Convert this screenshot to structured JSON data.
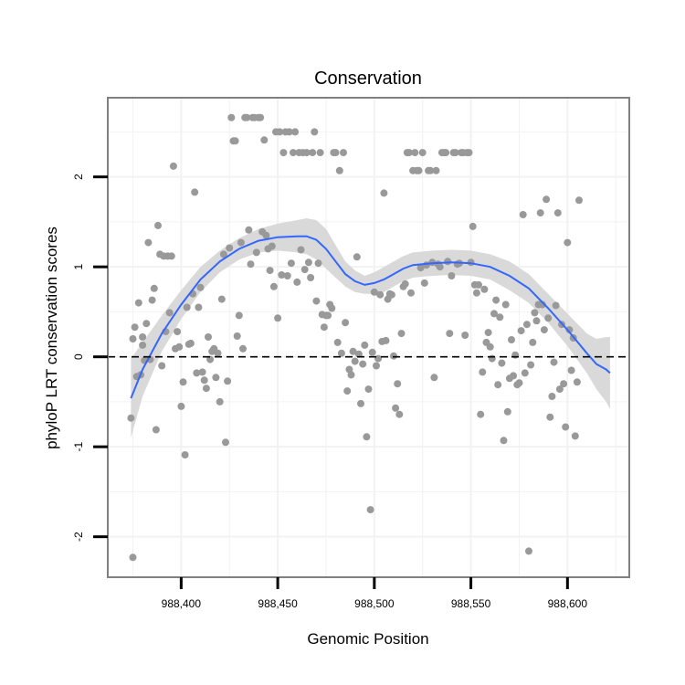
{
  "chart_data": {
    "type": "scatter",
    "title": "Conservation",
    "xlabel": "Genomic Position",
    "ylabel": "phyloP LRT conservation scores",
    "xlim": [
      988362,
      988632
    ],
    "ylim": [
      -2.45,
      2.88
    ],
    "x_ticks": [
      988400,
      988450,
      988500,
      988550,
      988600
    ],
    "x_tick_labels": [
      "988,400",
      "988,450",
      "988,500",
      "988,550",
      "988,600"
    ],
    "y_ticks": [
      -2,
      -1,
      0,
      1,
      2
    ],
    "y_tick_labels": [
      "-2",
      "-1",
      "0",
      "1",
      "2"
    ],
    "grid": true,
    "reference_line": {
      "y": 0,
      "style": "dashed",
      "color": "#000000"
    },
    "colors": {
      "points": "#999999",
      "smooth_line": "#3366ff",
      "ribbon": "#d9d9d9",
      "panel_border": "#808080",
      "grid": "#f2f2f2"
    },
    "series": [
      {
        "kind": "points",
        "points": [
          [
            988374,
            -0.68
          ],
          [
            988375,
            -2.23
          ],
          [
            988375,
            0.2
          ],
          [
            988376,
            0.33
          ],
          [
            988377,
            -0.22
          ],
          [
            988378,
            0.6
          ],
          [
            988379,
            -0.2
          ],
          [
            988380,
            0.13
          ],
          [
            988380,
            0.22
          ],
          [
            988381,
            -0.04
          ],
          [
            988382,
            0.37
          ],
          [
            988383,
            1.27
          ],
          [
            988384,
            -0.03
          ],
          [
            988385,
            0.63
          ],
          [
            988386,
            0.76
          ],
          [
            988387,
            -0.81
          ],
          [
            988388,
            1.46
          ],
          [
            988389,
            1.14
          ],
          [
            988390,
            -0.1
          ],
          [
            988391,
            1.12
          ],
          [
            988392,
            0.28
          ],
          [
            988393,
            1.12
          ],
          [
            988394,
            0.49
          ],
          [
            988395,
            1.12
          ],
          [
            988396,
            2.12
          ],
          [
            988397,
            0.09
          ],
          [
            988398,
            0.28
          ],
          [
            988399,
            0.11
          ],
          [
            988400,
            -0.55
          ],
          [
            988401,
            -0.28
          ],
          [
            988402,
            -1.09
          ],
          [
            988403,
            0.55
          ],
          [
            988404,
            0.14
          ],
          [
            988405,
            0.15
          ],
          [
            988406,
            0.7
          ],
          [
            988407,
            1.83
          ],
          [
            988408,
            -0.18
          ],
          [
            988409,
            0.55
          ],
          [
            988410,
            0.77
          ],
          [
            988411,
            -0.17
          ],
          [
            988412,
            -0.26
          ],
          [
            988413,
            -0.35
          ],
          [
            988414,
            0.22
          ],
          [
            988415,
            -0.03
          ],
          [
            988416,
            0.06
          ],
          [
            988417,
            0.09
          ],
          [
            988418,
            -0.23
          ],
          [
            988419,
            0.04
          ],
          [
            988420,
            -0.5
          ],
          [
            988421,
            0.64
          ],
          [
            988422,
            1.14
          ],
          [
            988423,
            -0.95
          ],
          [
            988424,
            -0.27
          ],
          [
            988425,
            1.21
          ],
          [
            988426,
            2.66
          ],
          [
            988427,
            2.4
          ],
          [
            988428,
            2.4
          ],
          [
            988429,
            0.23
          ],
          [
            988430,
            0.46
          ],
          [
            988431,
            1.27
          ],
          [
            988432,
            0.09
          ],
          [
            988433,
            2.66
          ],
          [
            988434,
            2.66
          ],
          [
            988435,
            1.41
          ],
          [
            988436,
            1.03
          ],
          [
            988437,
            2.66
          ],
          [
            988438,
            2.66
          ],
          [
            988439,
            1.16
          ],
          [
            988440,
            2.66
          ],
          [
            988441,
            2.66
          ],
          [
            988442,
            1.39
          ],
          [
            988443,
            2.41
          ],
          [
            988444,
            1.35
          ],
          [
            988445,
            1.2
          ],
          [
            988446,
            0.96
          ],
          [
            988447,
            1.23
          ],
          [
            988448,
            0.78
          ],
          [
            988449,
            2.5
          ],
          [
            988450,
            0.43
          ],
          [
            988451,
            2.5
          ],
          [
            988452,
            0.91
          ],
          [
            988453,
            2.27
          ],
          [
            988454,
            2.5
          ],
          [
            988455,
            0.9
          ],
          [
            988456,
            2.5
          ],
          [
            988457,
            1.04
          ],
          [
            988458,
            2.27
          ],
          [
            988459,
            2.5
          ],
          [
            988460,
            0.83
          ],
          [
            988461,
            2.27
          ],
          [
            988462,
            1.19
          ],
          [
            988463,
            2.27
          ],
          [
            988464,
            0.97
          ],
          [
            988465,
            2.27
          ],
          [
            988466,
            1.05
          ],
          [
            988467,
            0.88
          ],
          [
            988468,
            2.27
          ],
          [
            988469,
            2.5
          ],
          [
            988470,
            0.62
          ],
          [
            988471,
            1.04
          ],
          [
            988472,
            2.27
          ],
          [
            988473,
            0.47
          ],
          [
            988474,
            0.33
          ],
          [
            988475,
            0.46
          ],
          [
            988476,
            0.46
          ],
          [
            988477,
            0.58
          ],
          [
            988478,
            0.54
          ],
          [
            988479,
            2.27
          ],
          [
            988480,
            2.27
          ],
          [
            988481,
            0.16
          ],
          [
            988482,
            2.07
          ],
          [
            988483,
            0.04
          ],
          [
            988484,
            2.27
          ],
          [
            988485,
            0.38
          ],
          [
            988486,
            -0.38
          ],
          [
            988487,
            -0.14
          ],
          [
            988488,
            -0.2
          ],
          [
            988489,
            0.06
          ],
          [
            988490,
            -0.05
          ],
          [
            988491,
            1.11
          ],
          [
            988492,
            0.03
          ],
          [
            988493,
            -0.52
          ],
          [
            988494,
            -0.08
          ],
          [
            988495,
            0.13
          ],
          [
            988496,
            -0.89
          ],
          [
            988497,
            -0.36
          ],
          [
            988498,
            -1.7
          ],
          [
            988499,
            0.05
          ],
          [
            988500,
            0.72
          ],
          [
            988501,
            -0.1
          ],
          [
            988502,
            -0.02
          ],
          [
            988503,
            0.69
          ],
          [
            988504,
            0.17
          ],
          [
            988505,
            1.82
          ],
          [
            988506,
            0.18
          ],
          [
            988507,
            0.64
          ],
          [
            988508,
            0.7
          ],
          [
            988509,
            0.69
          ],
          [
            988510,
            0.01
          ],
          [
            988511,
            -0.57
          ],
          [
            988512,
            -0.3
          ],
          [
            988513,
            -0.64
          ],
          [
            988514,
            0.26
          ],
          [
            988515,
            0.78
          ],
          [
            988516,
            0.81
          ],
          [
            988517,
            2.27
          ],
          [
            988518,
            2.27
          ],
          [
            988519,
            0.71
          ],
          [
            988520,
            2.07
          ],
          [
            988521,
            2.27
          ],
          [
            988522,
            2.07
          ],
          [
            988523,
            2.07
          ],
          [
            988524,
            0.99
          ],
          [
            988525,
            2.27
          ],
          [
            988526,
            0.82
          ],
          [
            988527,
            1.02
          ],
          [
            988528,
            2.07
          ],
          [
            988529,
            2.07
          ],
          [
            988530,
            1.05
          ],
          [
            988531,
            -0.23
          ],
          [
            988532,
            2.07
          ],
          [
            988533,
            1.03
          ],
          [
            988534,
            1.0
          ],
          [
            988535,
            2.27
          ],
          [
            988536,
            2.27
          ],
          [
            988537,
            2.27
          ],
          [
            988538,
            1.06
          ],
          [
            988539,
            0.26
          ],
          [
            988540,
            0.9
          ],
          [
            988541,
            2.27
          ],
          [
            988542,
            2.27
          ],
          [
            988543,
            1.03
          ],
          [
            988544,
            1.04
          ],
          [
            988545,
            2.27
          ],
          [
            988546,
            2.27
          ],
          [
            988547,
            0.24
          ],
          [
            988548,
            2.27
          ],
          [
            988549,
            2.27
          ],
          [
            988550,
            1.05
          ],
          [
            988551,
            1.45
          ],
          [
            988552,
            0.8
          ],
          [
            988553,
            0.71
          ],
          [
            988554,
            0.8
          ],
          [
            988555,
            -0.64
          ],
          [
            988556,
            -0.17
          ],
          [
            988557,
            0.75
          ],
          [
            988558,
            0.16
          ],
          [
            988559,
            0.27
          ],
          [
            988560,
            0.11
          ],
          [
            988561,
            -0.02
          ],
          [
            988562,
            0.48
          ],
          [
            988563,
            0.63
          ],
          [
            988564,
            -0.31
          ],
          [
            988565,
            0.44
          ],
          [
            988566,
            -0.07
          ],
          [
            988567,
            -0.93
          ],
          [
            988568,
            0.58
          ],
          [
            988569,
            -0.61
          ],
          [
            988570,
            -0.24
          ],
          [
            988571,
            0.19
          ],
          [
            988572,
            -0.21
          ],
          [
            988573,
            0.02
          ],
          [
            988574,
            -0.31
          ],
          [
            988575,
            -0.29
          ],
          [
            988576,
            0.29
          ],
          [
            988577,
            1.58
          ],
          [
            988578,
            -0.18
          ],
          [
            988579,
            0.36
          ],
          [
            988580,
            -2.16
          ],
          [
            988581,
            -0.09
          ],
          [
            988582,
            0.16
          ],
          [
            988583,
            0.49
          ],
          [
            988584,
            0.4
          ],
          [
            988585,
            0.58
          ],
          [
            988586,
            1.6
          ],
          [
            988587,
            0.58
          ],
          [
            988588,
            0.3
          ],
          [
            988589,
            1.75
          ],
          [
            988590,
            0.43
          ],
          [
            988591,
            -0.67
          ],
          [
            988592,
            -0.44
          ],
          [
            988593,
            -0.06
          ],
          [
            988594,
            0.57
          ],
          [
            988595,
            1.6
          ],
          [
            988596,
            -0.36
          ],
          [
            988597,
            0.36
          ],
          [
            988598,
            -0.3
          ],
          [
            988599,
            -0.78
          ],
          [
            988600,
            1.27
          ],
          [
            988601,
            0.3
          ],
          [
            988602,
            -0.15
          ],
          [
            988603,
            0.21
          ],
          [
            988604,
            -0.88
          ],
          [
            988605,
            -0.28
          ],
          [
            988606,
            1.74
          ]
        ]
      },
      {
        "kind": "smooth",
        "x": [
          988374,
          988380,
          988390,
          988400,
          988410,
          988420,
          988430,
          988440,
          988450,
          988460,
          988465,
          988470,
          988475,
          988480,
          988485,
          988490,
          988495,
          988500,
          988505,
          988510,
          988515,
          988520,
          988530,
          988540,
          988550,
          988560,
          988570,
          988580,
          988590,
          988600,
          988610,
          988615,
          988620,
          988622
        ],
        "y": [
          -0.46,
          -0.14,
          0.26,
          0.58,
          0.86,
          1.06,
          1.2,
          1.29,
          1.33,
          1.34,
          1.34,
          1.3,
          1.2,
          1.06,
          0.92,
          0.84,
          0.8,
          0.82,
          0.86,
          0.92,
          0.98,
          1.02,
          1.04,
          1.05,
          1.04,
          1.0,
          0.9,
          0.76,
          0.54,
          0.3,
          0.04,
          -0.08,
          -0.14,
          -0.18
        ],
        "ci_lower": [
          -0.9,
          -0.44,
          0.06,
          0.42,
          0.72,
          0.94,
          1.08,
          1.16,
          1.18,
          1.16,
          1.14,
          1.08,
          0.98,
          0.88,
          0.78,
          0.72,
          0.7,
          0.7,
          0.72,
          0.78,
          0.84,
          0.88,
          0.9,
          0.91,
          0.9,
          0.86,
          0.74,
          0.6,
          0.38,
          0.12,
          -0.18,
          -0.36,
          -0.5,
          -0.58
        ],
        "ci_upper": [
          -0.02,
          0.16,
          0.46,
          0.74,
          1.0,
          1.18,
          1.32,
          1.42,
          1.48,
          1.52,
          1.54,
          1.52,
          1.42,
          1.24,
          1.06,
          0.96,
          0.9,
          0.94,
          1.0,
          1.06,
          1.12,
          1.16,
          1.18,
          1.19,
          1.18,
          1.14,
          1.06,
          0.92,
          0.7,
          0.48,
          0.26,
          0.2,
          0.22,
          0.22
        ]
      }
    ]
  }
}
